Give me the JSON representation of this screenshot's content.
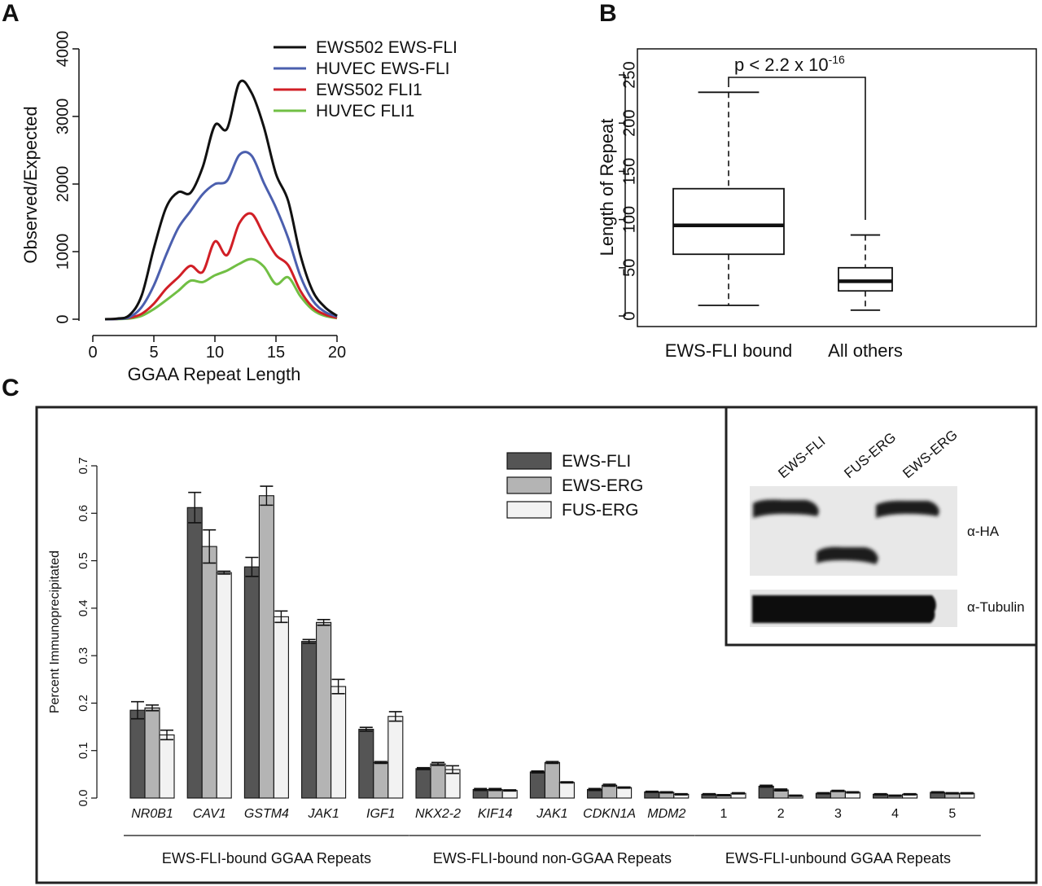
{
  "panel_labels": {
    "a": "A",
    "b": "B",
    "c": "C"
  },
  "chart_data": [
    {
      "type": "line",
      "panel": "A",
      "xlabel": "GGAA Repeat Length",
      "ylabel": "Observed/Expected",
      "xlim": [
        1,
        20
      ],
      "ylim": [
        0,
        4000
      ],
      "xticks": [
        0,
        5,
        10,
        15,
        20
      ],
      "yticks": [
        0,
        1000,
        2000,
        3000,
        4000
      ],
      "legend_position": "top-right",
      "x": [
        1,
        2,
        3,
        4,
        5,
        6,
        7,
        8,
        9,
        10,
        11,
        12,
        13,
        14,
        15,
        16,
        17,
        18,
        19,
        20
      ],
      "series": [
        {
          "name": "EWS502 EWS-FLI",
          "color": "#111111",
          "values": [
            0,
            10,
            60,
            350,
            1050,
            1650,
            1880,
            1870,
            2250,
            2870,
            2820,
            3500,
            3350,
            2850,
            2150,
            1750,
            950,
            420,
            180,
            50
          ]
        },
        {
          "name": "HUVEC EWS-FLI",
          "color": "#4b5fae",
          "values": [
            0,
            5,
            30,
            180,
            500,
            950,
            1350,
            1600,
            1850,
            2000,
            2050,
            2430,
            2420,
            2020,
            1650,
            1200,
            640,
            280,
            110,
            40
          ]
        },
        {
          "name": "EWS502 FLI1",
          "color": "#d11f26",
          "values": [
            0,
            5,
            20,
            80,
            230,
            450,
            620,
            790,
            700,
            1150,
            950,
            1420,
            1560,
            1250,
            950,
            800,
            420,
            180,
            70,
            20
          ]
        },
        {
          "name": "HUVEC FLI1",
          "color": "#71bf44",
          "values": [
            0,
            2,
            10,
            50,
            150,
            280,
            420,
            570,
            550,
            650,
            720,
            820,
            890,
            780,
            520,
            620,
            340,
            140,
            50,
            15
          ]
        }
      ]
    },
    {
      "type": "box",
      "panel": "B",
      "ylabel": "Length of Repeat",
      "ylim": [
        0,
        250
      ],
      "yticks": [
        0,
        50,
        100,
        150,
        200,
        250
      ],
      "categories": [
        "EWS-FLI bound",
        "All others"
      ],
      "boxes": [
        {
          "whisker_low": 11,
          "q1": 64,
          "median": 94,
          "q3": 132,
          "whisker_high": 232
        },
        {
          "whisker_low": 6,
          "q1": 26,
          "median": 36,
          "q3": 50,
          "whisker_high": 84
        }
      ],
      "annotation": {
        "text": "p < 2.2 x 10",
        "superscript": "-16"
      }
    },
    {
      "type": "bar",
      "panel": "C",
      "ylabel": "Percent Immunoprecipitated",
      "ylim": [
        0,
        0.7
      ],
      "yticks": [
        "0.0",
        "0.1",
        "0.2",
        "0.3",
        "0.4",
        "0.5",
        "0.6",
        "0.7"
      ],
      "legend_position": "top-center",
      "categories": [
        {
          "label": "NR0B1",
          "italic": true
        },
        {
          "label": "CAV1",
          "italic": true
        },
        {
          "label": "GSTM4",
          "italic": true
        },
        {
          "label": "JAK1",
          "italic": true
        },
        {
          "label": "IGF1",
          "italic": true
        },
        {
          "label": "NKX2-2",
          "italic": true
        },
        {
          "label": "KIF14",
          "italic": true
        },
        {
          "label": "JAK1",
          "italic": true
        },
        {
          "label": "CDKN1A",
          "italic": true
        },
        {
          "label": "MDM2",
          "italic": true
        },
        {
          "label": "1",
          "italic": false
        },
        {
          "label": "2",
          "italic": false
        },
        {
          "label": "3",
          "italic": false
        },
        {
          "label": "4",
          "italic": false
        },
        {
          "label": "5",
          "italic": false
        }
      ],
      "series": [
        {
          "name": "EWS-FLI",
          "color": "#555555",
          "values": [
            0.185,
            0.612,
            0.487,
            0.33,
            0.145,
            0.062,
            0.018,
            0.055,
            0.018,
            0.013,
            0.008,
            0.025,
            0.01,
            0.008,
            0.012
          ],
          "errors": [
            0.018,
            0.032,
            0.02,
            0.004,
            0.004,
            0.002,
            0.002,
            0.002,
            0.002,
            0.001,
            0.001,
            0.002,
            0.001,
            0.001,
            0.001
          ]
        },
        {
          "name": "EWS-ERG",
          "color": "#b4b4b4",
          "values": [
            0.19,
            0.53,
            0.637,
            0.37,
            0.075,
            0.072,
            0.018,
            0.075,
            0.027,
            0.012,
            0.006,
            0.017,
            0.015,
            0.005,
            0.01
          ],
          "errors": [
            0.006,
            0.035,
            0.02,
            0.006,
            0.002,
            0.003,
            0.002,
            0.002,
            0.002,
            0.001,
            0.001,
            0.002,
            0.001,
            0.001,
            0.001
          ]
        },
        {
          "name": "FUS-ERG",
          "color": "#f2f2f2",
          "values": [
            0.133,
            0.475,
            0.382,
            0.235,
            0.172,
            0.06,
            0.016,
            0.033,
            0.022,
            0.008,
            0.01,
            0.005,
            0.012,
            0.008,
            0.01
          ],
          "errors": [
            0.01,
            0.003,
            0.012,
            0.015,
            0.01,
            0.008,
            0.001,
            0.001,
            0.001,
            0.001,
            0.001,
            0.001,
            0.001,
            0.001,
            0.001
          ]
        }
      ],
      "groups": [
        {
          "label": "EWS-FLI-bound GGAA Repeats",
          "from": 0,
          "to": 4
        },
        {
          "label": "EWS-FLI-bound non-GGAA Repeats",
          "from": 5,
          "to": 9
        },
        {
          "label": "EWS-FLI-unbound GGAA Repeats",
          "from": 10,
          "to": 14
        }
      ]
    }
  ],
  "western_blot": {
    "lanes": [
      "EWS-FLI",
      "FUS-ERG",
      "EWS-ERG"
    ],
    "rows": [
      "α-HA",
      "α-Tubulin"
    ]
  }
}
